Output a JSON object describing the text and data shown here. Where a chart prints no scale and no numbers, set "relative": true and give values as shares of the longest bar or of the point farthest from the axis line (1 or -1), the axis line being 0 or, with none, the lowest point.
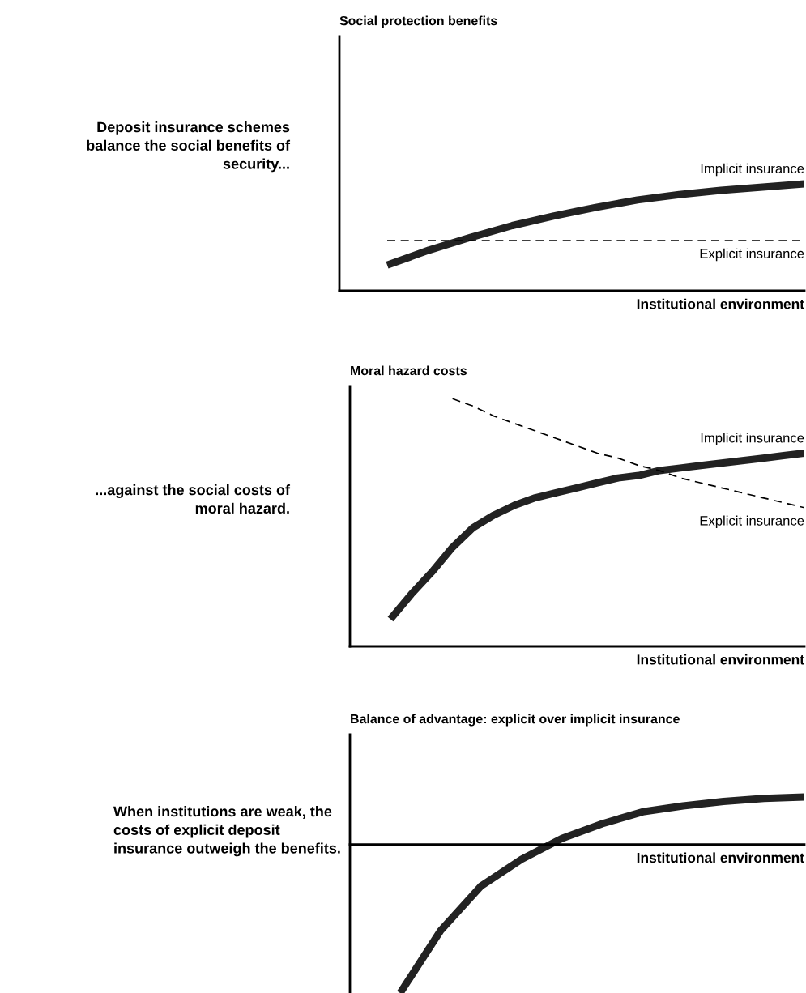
{
  "chart_data": [
    {
      "type": "line",
      "title": "Social protection benefits",
      "xlabel": "Institutional environment",
      "relative": true,
      "annotations": [
        "Deposit insurance schemes\nbalance the social benefits of\nsecurity..."
      ],
      "categories": [
        null,
        null,
        null,
        null,
        null,
        null,
        null,
        null,
        null,
        null,
        null
      ],
      "series": [
        {
          "name": "Implicit insurance",
          "color": "#222222",
          "line_style": "solid",
          "values": [
            0.24,
            0.38,
            0.5,
            0.61,
            0.7,
            0.78,
            0.85,
            0.9,
            0.94,
            0.97,
            1.0
          ]
        },
        {
          "name": "Explicit insurance",
          "color": "#000000",
          "line_style": "dashed",
          "values": [
            0.47,
            0.47,
            0.47,
            0.47,
            0.47,
            0.47,
            0.47,
            0.47,
            0.47,
            0.47,
            0.47
          ]
        }
      ]
    },
    {
      "type": "line",
      "title": "Moral hazard costs",
      "xlabel": "Institutional environment",
      "relative": true,
      "annotations": [
        "...against the social costs of\nmoral hazard."
      ],
      "categories": [
        null,
        null,
        null,
        null,
        null,
        null,
        null,
        null,
        null,
        null,
        null,
        null,
        null,
        null,
        null,
        null,
        null,
        null,
        null,
        null,
        null
      ],
      "series": [
        {
          "name": "Implicit insurance",
          "color": "#222222",
          "line_style": "solid",
          "values": [
            0.11,
            0.21,
            0.3,
            0.4,
            0.48,
            0.53,
            0.57,
            0.6,
            0.62,
            0.64,
            0.66,
            0.68,
            0.69,
            0.71,
            0.72,
            0.73,
            0.74,
            0.75,
            0.76,
            0.77,
            0.78
          ]
        },
        {
          "name": "Explicit insurance",
          "color": "#000000",
          "line_style": "dashed",
          "values": [
            null,
            null,
            null,
            1.0,
            0.97,
            0.93,
            0.9,
            0.87,
            0.84,
            0.81,
            0.78,
            0.76,
            0.73,
            0.71,
            0.68,
            0.66,
            0.64,
            0.62,
            0.6,
            0.58,
            0.56
          ]
        }
      ]
    },
    {
      "type": "line",
      "title": "Balance of advantage: explicit over implicit insurance",
      "xlabel": "Institutional environment",
      "relative": true,
      "annotations": [
        "When institutions are weak, the\ncosts of explicit deposit\ninsurance outweigh the benefits."
      ],
      "categories": [
        null,
        null,
        null,
        null,
        null,
        null,
        null,
        null,
        null,
        null,
        null
      ],
      "series": [
        {
          "color": "#222222",
          "line_style": "solid",
          "values": [
            -1.0,
            -0.58,
            -0.28,
            -0.1,
            0.04,
            0.14,
            0.22,
            0.26,
            0.29,
            0.31,
            0.32
          ]
        }
      ]
    }
  ]
}
